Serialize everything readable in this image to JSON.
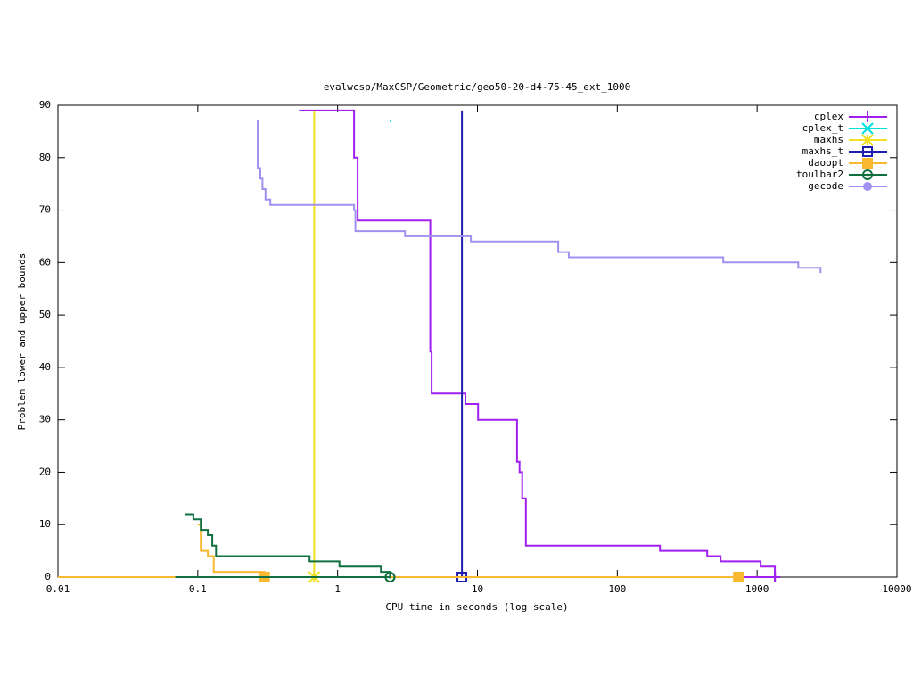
{
  "chart_data": {
    "type": "line",
    "title": "evalwcsp/MaxCSP/Geometric/geo50-20-d4-75-45_ext_1000",
    "x_label": "CPU time in seconds (log scale)",
    "y_label": "Problem lower and upper bounds",
    "xscale": "log",
    "xlim": [
      0.01,
      10000
    ],
    "ylim": [
      0,
      90
    ],
    "xticks": [
      0.01,
      0.1,
      1,
      10,
      100,
      1000,
      10000
    ],
    "yticks": [
      0,
      10,
      20,
      30,
      40,
      50,
      60,
      70,
      80,
      90
    ],
    "legend": "top-right",
    "series": [
      {
        "name": "cplex",
        "color": "#a020f0",
        "marker": "plus",
        "x": [
          0.53,
          1.31,
          1.31,
          1.39,
          1.39,
          4.6,
          4.6,
          4.7,
          4.7,
          8.2,
          8.2,
          10.1,
          10.1,
          19.2,
          19.2,
          20,
          20,
          20.9,
          20.9,
          22.2,
          22.2,
          202,
          202,
          440,
          440,
          548,
          548,
          1060,
          1060,
          1340,
          1340,
          null,
          0.01,
          1340
        ],
        "values": [
          89,
          89,
          80,
          80,
          68,
          68,
          43,
          43,
          35,
          35,
          33,
          33,
          30,
          30,
          22,
          22,
          20,
          20,
          15,
          15,
          6,
          6,
          5,
          5,
          4,
          4,
          3,
          3,
          2,
          2,
          0,
          null,
          0,
          0
        ]
      },
      {
        "name": "cplex_t",
        "color": "#00e0e0",
        "marker": "cross",
        "x": [
          2.39
        ],
        "values": [
          87
        ]
      },
      {
        "name": "maxhs",
        "color": "#f0e020",
        "marker": "star",
        "x": [
          0.68,
          0.68
        ],
        "values": [
          89,
          0
        ]
      },
      {
        "name": "maxhs_t",
        "color": "#2020b0",
        "marker": "square-open",
        "x": [
          7.74,
          7.74
        ],
        "values": [
          89,
          0
        ]
      },
      {
        "name": "daoopt",
        "color": "#f8b830",
        "marker": "square",
        "x": [
          0.1,
          0.105,
          0.105,
          0.118,
          0.118,
          0.13,
          0.13,
          0.3,
          0.3,
          null,
          0.01,
          735
        ],
        "values": [
          10,
          10,
          5,
          5,
          4,
          4,
          1,
          1,
          0,
          null,
          0,
          0
        ]
      },
      {
        "name": "toulbar2",
        "color": "#107040",
        "marker": "circle-open",
        "x": [
          0.0805,
          0.093,
          0.093,
          0.105,
          0.105,
          0.118,
          0.118,
          0.127,
          0.127,
          0.135,
          0.135,
          0.63,
          0.63,
          1.03,
          1.03,
          2.04,
          2.04,
          2.37,
          2.37,
          null,
          0.069,
          2.37
        ],
        "values": [
          12,
          12,
          11,
          11,
          9,
          9,
          8,
          8,
          6,
          6,
          4,
          4,
          3,
          3,
          2,
          2,
          1,
          1,
          0,
          null,
          0,
          0
        ]
      },
      {
        "name": "gecode",
        "color": "#a090f0",
        "marker": "circle",
        "x": [
          0.264,
          0.268,
          0.268,
          0.28,
          0.28,
          0.29,
          0.29,
          0.305,
          0.305,
          0.33,
          0.33,
          1.31,
          1.31,
          1.34,
          1.34,
          3.03,
          3.03,
          8.97,
          8.97,
          37.8,
          37.8,
          45,
          45,
          573,
          573,
          1970,
          1970,
          2840,
          2840
        ],
        "values": [
          87,
          87,
          78,
          78,
          76,
          76,
          74,
          74,
          72,
          72,
          71,
          71,
          70,
          70,
          66,
          66,
          65,
          65,
          64,
          64,
          62,
          62,
          61,
          61,
          60,
          60,
          59,
          59,
          58
        ]
      }
    ]
  }
}
